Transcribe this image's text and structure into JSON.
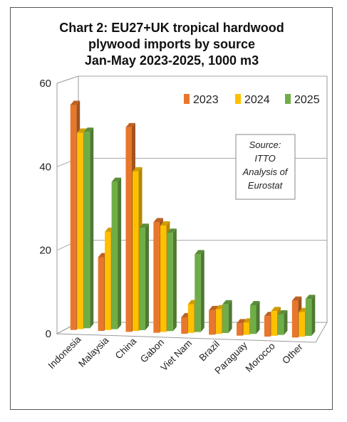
{
  "chart_data": {
    "type": "bar",
    "title_lines": [
      "Chart 2: EU27+UK tropical  hardwood",
      "plywood imports by source",
      "Jan-May 2023-2025, 1000 m3"
    ],
    "categories": [
      "Indonesia",
      "Malaysia",
      "China",
      "Gabon",
      "Viet Nam",
      "Brazil",
      "Paraguay",
      "Morocco",
      "Other"
    ],
    "series": [
      {
        "name": "2023",
        "color": "#e8772b",
        "values": [
          55,
          18,
          50,
          27,
          4,
          6,
          3,
          5,
          9
        ]
      },
      {
        "name": "2024",
        "color": "#ffc000",
        "values": [
          48,
          24,
          39,
          26,
          7,
          6,
          3,
          6,
          6
        ]
      },
      {
        "name": "2025",
        "color": "#70ad47",
        "values": [
          48,
          36,
          25,
          24,
          19,
          7,
          7,
          5,
          9
        ]
      }
    ],
    "ylim": [
      0,
      60
    ],
    "yticks": [
      0,
      20,
      40,
      60
    ],
    "grid": true,
    "legend_position": "top-right",
    "annotation_lines": [
      "Source:",
      "ITTO",
      "Analysis of",
      "Eurostat"
    ]
  }
}
